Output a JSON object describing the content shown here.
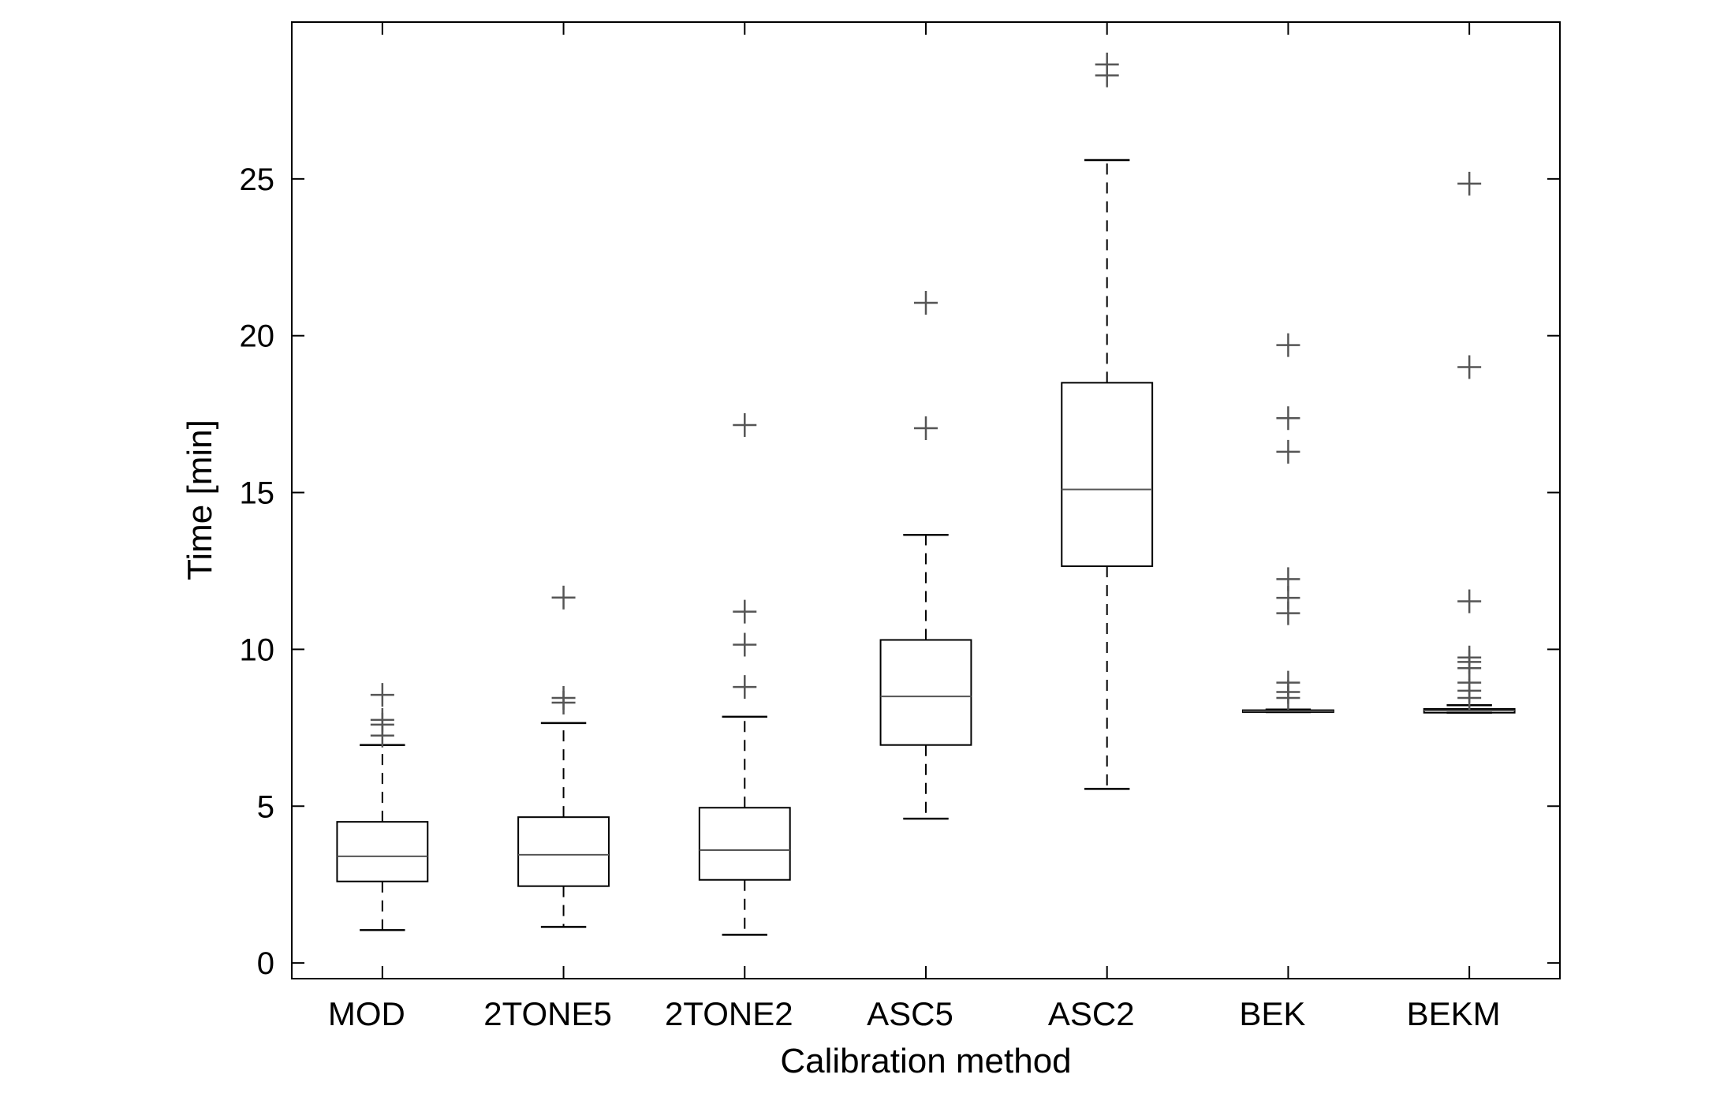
{
  "chart_data": {
    "type": "box",
    "title": "",
    "xlabel": "Calibration method",
    "ylabel": "Time [min]",
    "ylim": [
      -0.5,
      30
    ],
    "yticks": [
      0,
      5,
      10,
      15,
      20,
      25
    ],
    "grid": false,
    "colors": {
      "box": "#000000",
      "median": "#555555",
      "outlier": "#555555"
    },
    "categories": [
      "MOD",
      "2TONE5",
      "2TONE2",
      "ASC5",
      "ASC2",
      "BEK",
      "BEKM"
    ],
    "boxes": [
      {
        "name": "MOD",
        "whisker_low": 1.05,
        "q1": 2.6,
        "median": 3.4,
        "q3": 4.5,
        "whisker_high": 6.95,
        "outliers": [
          7.25,
          7.6,
          7.75,
          8.55
        ]
      },
      {
        "name": "2TONE5",
        "whisker_low": 1.15,
        "q1": 2.45,
        "median": 3.45,
        "q3": 4.65,
        "whisker_high": 7.65,
        "outliers": [
          8.3,
          8.45,
          11.65
        ]
      },
      {
        "name": "2TONE2",
        "whisker_low": 0.9,
        "q1": 2.65,
        "median": 3.6,
        "q3": 4.95,
        "whisker_high": 7.85,
        "outliers": [
          8.8,
          10.15,
          11.2,
          17.15
        ]
      },
      {
        "name": "ASC5",
        "whisker_low": 4.6,
        "q1": 6.95,
        "median": 8.5,
        "q3": 10.3,
        "whisker_high": 13.65,
        "outliers": [
          17.05,
          21.05
        ]
      },
      {
        "name": "ASC2",
        "whisker_low": 5.55,
        "q1": 12.65,
        "median": 15.1,
        "q3": 18.5,
        "whisker_high": 25.6,
        "outliers": [
          28.3,
          28.65
        ]
      },
      {
        "name": "BEK",
        "whisker_low": 8.0,
        "q1": 8.0,
        "median": 8.03,
        "q3": 8.06,
        "whisker_high": 8.08,
        "outliers": [
          8.45,
          8.64,
          8.94,
          11.15,
          11.64,
          12.24,
          16.3,
          17.37,
          19.7
        ]
      },
      {
        "name": "BEKM",
        "whisker_low": 7.98,
        "q1": 7.98,
        "median": 8.05,
        "q3": 8.1,
        "whisker_high": 8.22,
        "outliers": [
          8.45,
          8.68,
          8.94,
          9.4,
          9.6,
          9.74,
          11.53,
          19.0,
          24.85
        ]
      }
    ]
  }
}
